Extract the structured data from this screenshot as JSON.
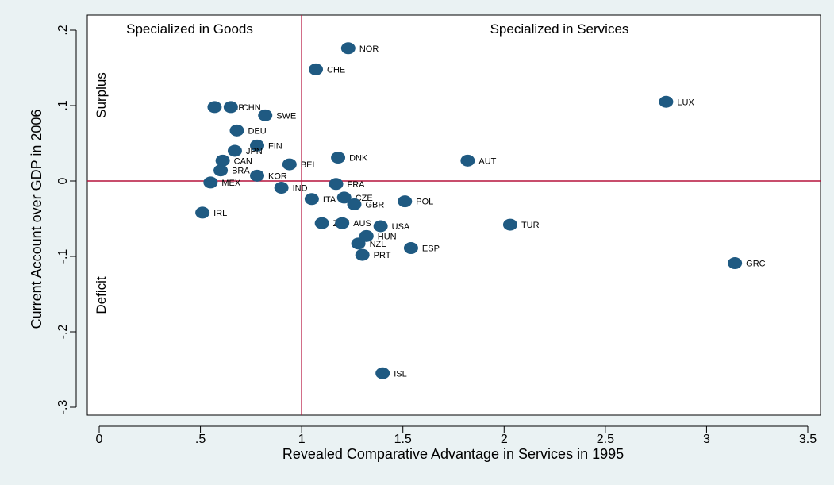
{
  "chart_data": {
    "type": "scatter",
    "title": "",
    "xlabel": "Revealed Comparative Advantage in Services in 1995",
    "ylabel": "Current Account over GDP in 2006",
    "xlim": [
      0,
      3.5
    ],
    "ylim": [
      -0.3,
      0.2
    ],
    "xticks": [
      {
        "value": 0,
        "label": "0"
      },
      {
        "value": 0.5,
        "label": ".5"
      },
      {
        "value": 1,
        "label": "1"
      },
      {
        "value": 1.5,
        "label": "1.5"
      },
      {
        "value": 2,
        "label": "2"
      },
      {
        "value": 2.5,
        "label": "2.5"
      },
      {
        "value": 3,
        "label": "3"
      },
      {
        "value": 3.5,
        "label": "3.5"
      }
    ],
    "yticks": [
      {
        "value": 0.2,
        "label": ".2"
      },
      {
        "value": 0.1,
        "label": ".1"
      },
      {
        "value": 0,
        "label": "0"
      },
      {
        "value": -0.1,
        "label": "-.1"
      },
      {
        "value": -0.2,
        "label": "-.2"
      },
      {
        "value": -0.3,
        "label": "-.3"
      }
    ],
    "grid": false,
    "reference_lines": {
      "x": 1,
      "y": 0,
      "color": "#b5123c"
    },
    "marker_color": "#1f5a82",
    "annotations": {
      "goods": "Specialized in Goods",
      "services": "Specialized in Services",
      "surplus": "Surplus",
      "deficit": "Deficit"
    },
    "points": [
      {
        "label": "NOR",
        "x": 1.23,
        "y": 0.176
      },
      {
        "label": "CHE",
        "x": 1.07,
        "y": 0.148
      },
      {
        "label": "LUX",
        "x": 2.8,
        "y": 0.105
      },
      {
        "label": "SGP",
        "x": 0.57,
        "y": 0.098
      },
      {
        "label": "CHN",
        "x": 0.65,
        "y": 0.098
      },
      {
        "label": "SWE",
        "x": 0.82,
        "y": 0.087
      },
      {
        "label": "DEU",
        "x": 0.68,
        "y": 0.067
      },
      {
        "label": "FIN",
        "x": 0.78,
        "y": 0.047
      },
      {
        "label": "JPN",
        "x": 0.67,
        "y": 0.04
      },
      {
        "label": "DNK",
        "x": 1.18,
        "y": 0.031
      },
      {
        "label": "CAN",
        "x": 0.61,
        "y": 0.027
      },
      {
        "label": "AUT",
        "x": 1.82,
        "y": 0.027
      },
      {
        "label": "BEL",
        "x": 0.94,
        "y": 0.022
      },
      {
        "label": "BRA",
        "x": 0.6,
        "y": 0.014
      },
      {
        "label": "KOR",
        "x": 0.78,
        "y": 0.007
      },
      {
        "label": "MEX",
        "x": 0.55,
        "y": -0.002
      },
      {
        "label": "FRA",
        "x": 1.17,
        "y": -0.004
      },
      {
        "label": "IND",
        "x": 0.9,
        "y": -0.009
      },
      {
        "label": "ITA",
        "x": 1.05,
        "y": -0.024
      },
      {
        "label": "CZE",
        "x": 1.21,
        "y": -0.022
      },
      {
        "label": "POL",
        "x": 1.51,
        "y": -0.027
      },
      {
        "label": "GBR",
        "x": 1.26,
        "y": -0.031
      },
      {
        "label": "IRL",
        "x": 0.51,
        "y": -0.042
      },
      {
        "label": "ZAF",
        "x": 1.1,
        "y": -0.056
      },
      {
        "label": "AUS",
        "x": 1.2,
        "y": -0.056
      },
      {
        "label": "TUR",
        "x": 2.03,
        "y": -0.058
      },
      {
        "label": "USA",
        "x": 1.39,
        "y": -0.06
      },
      {
        "label": "HUN",
        "x": 1.32,
        "y": -0.073
      },
      {
        "label": "NZL",
        "x": 1.28,
        "y": -0.083
      },
      {
        "label": "ESP",
        "x": 1.54,
        "y": -0.089
      },
      {
        "label": "PRT",
        "x": 1.3,
        "y": -0.098
      },
      {
        "label": "GRC",
        "x": 3.14,
        "y": -0.109
      },
      {
        "label": "ISL",
        "x": 1.4,
        "y": -0.255
      }
    ]
  }
}
